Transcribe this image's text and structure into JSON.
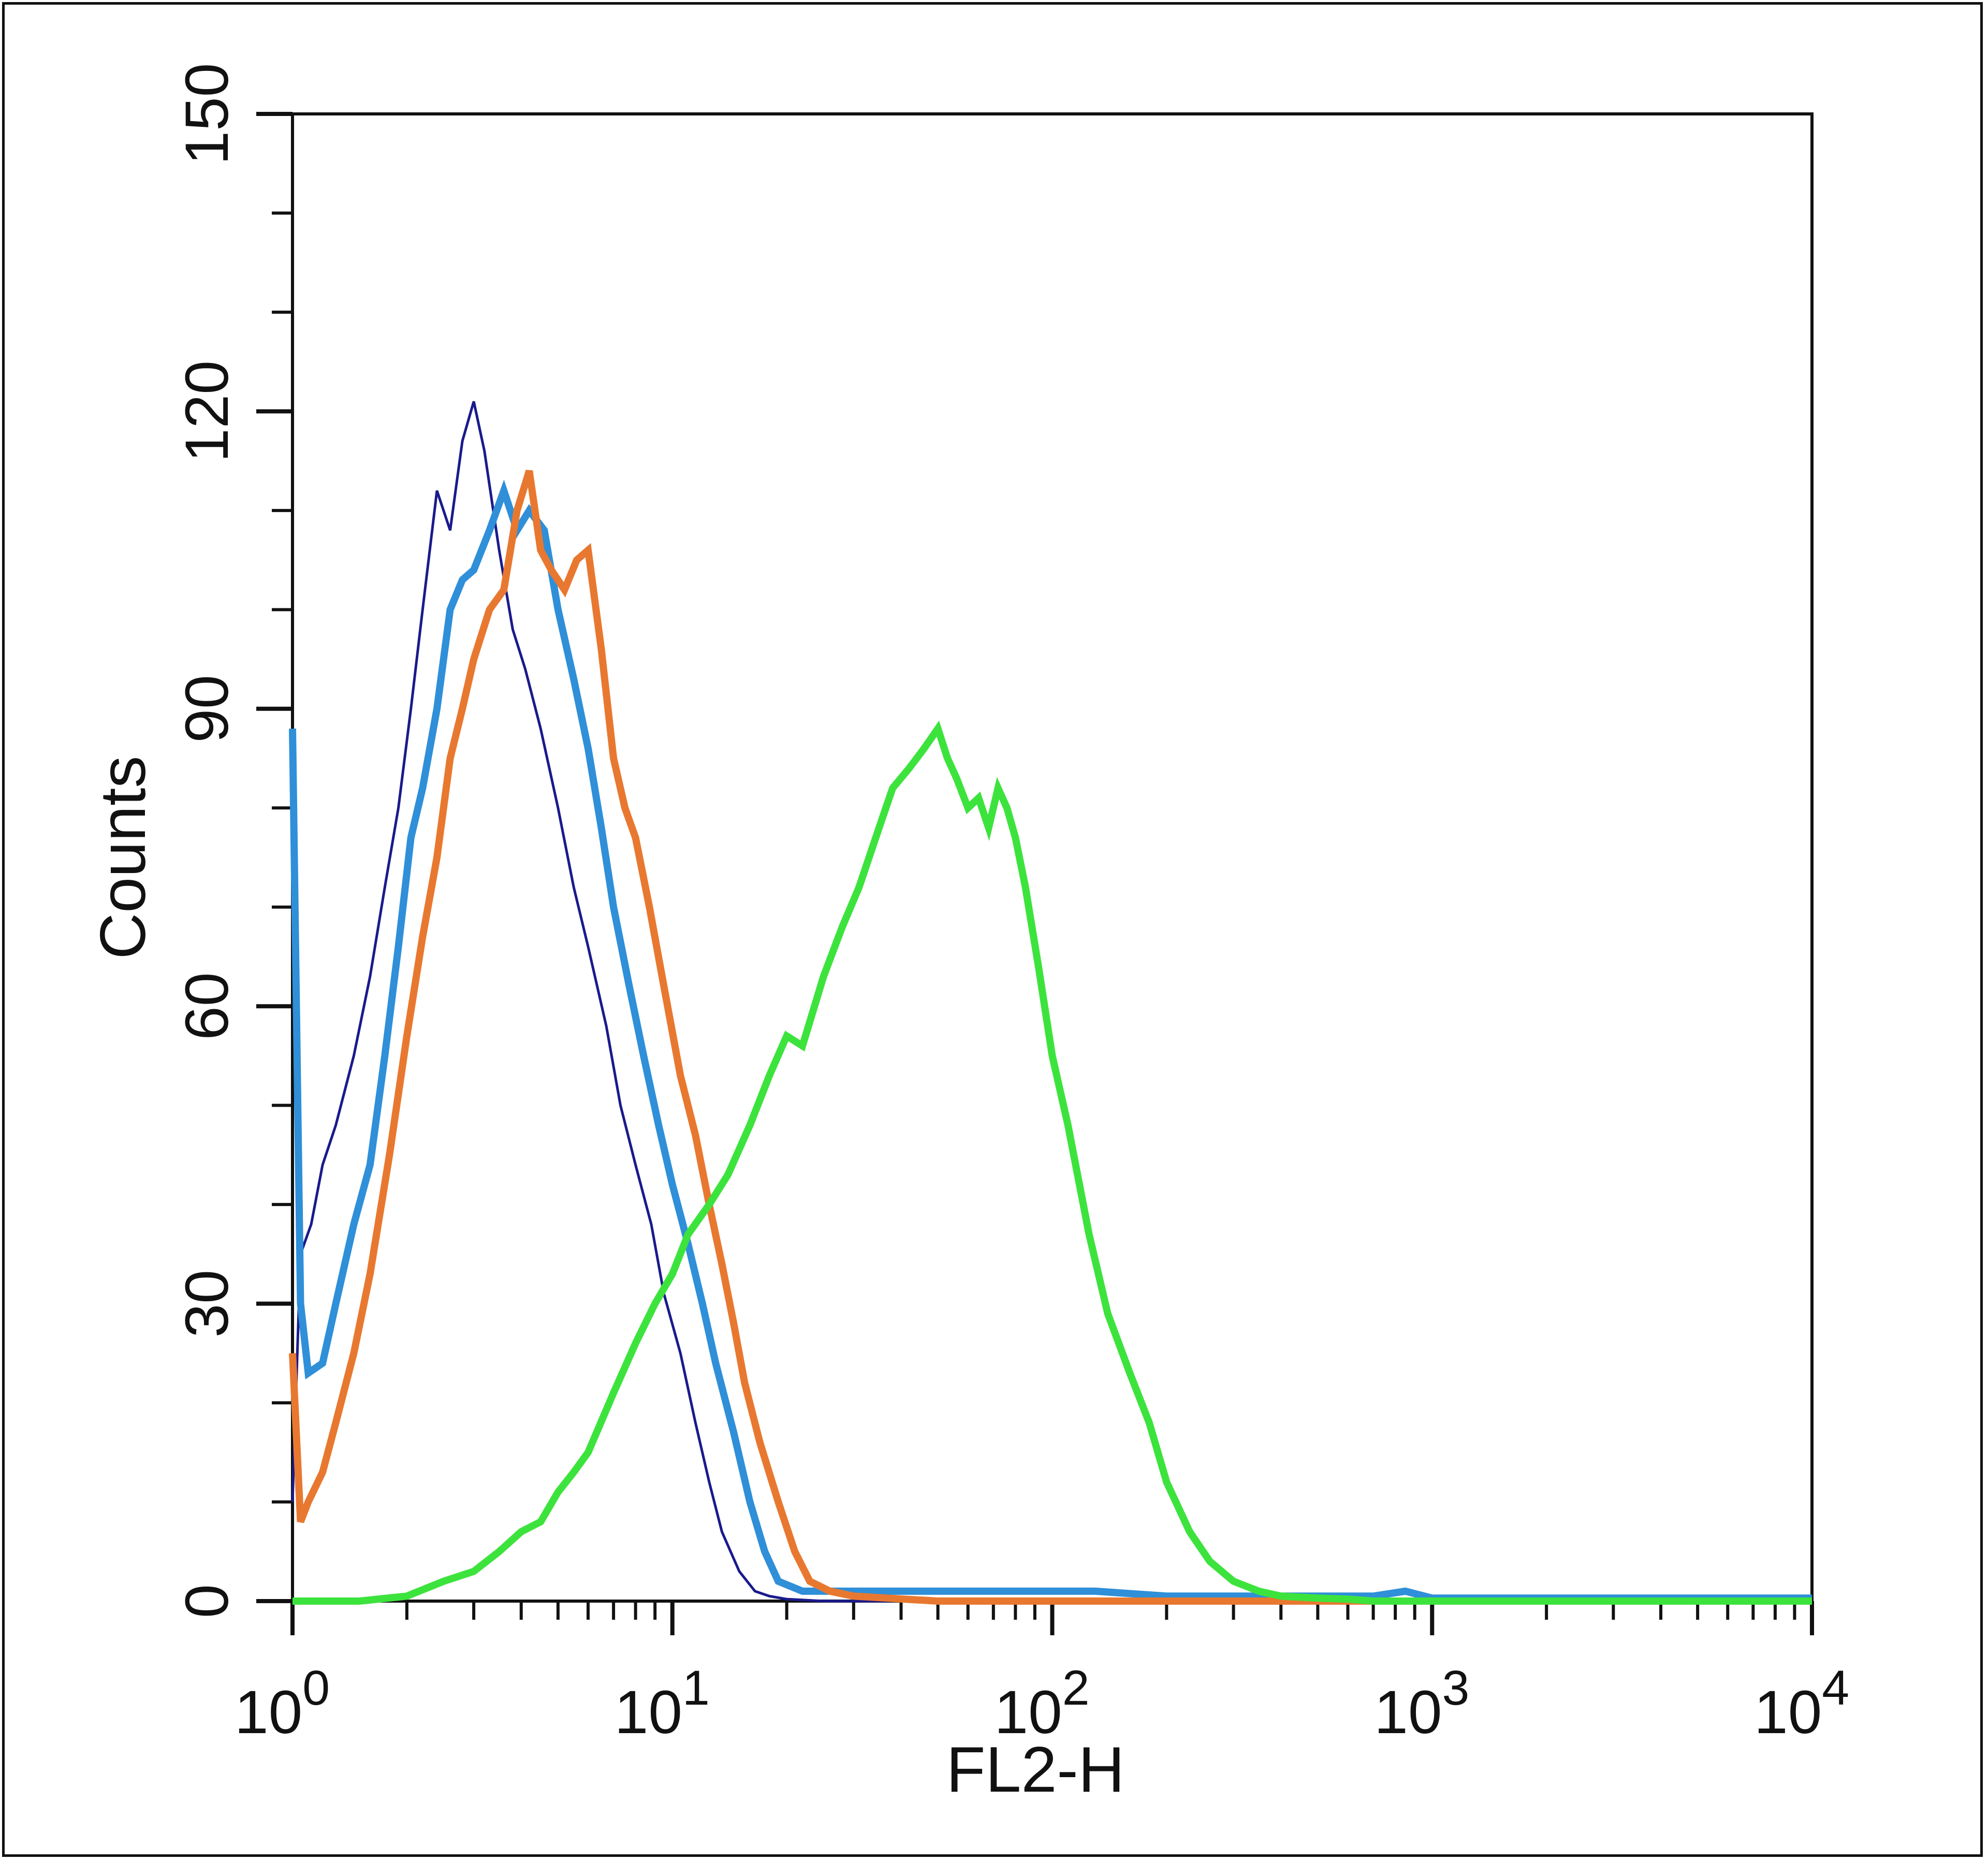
{
  "chart_data": {
    "type": "line",
    "title": "",
    "xlabel": "FL2-H",
    "ylabel": "Counts",
    "x_scale": "log",
    "xlim": [
      1,
      10000
    ],
    "ylim": [
      0,
      150
    ],
    "grid": false,
    "x_ticks": [
      {
        "value": 1,
        "base": "10",
        "exp": "0"
      },
      {
        "value": 10,
        "base": "10",
        "exp": "1"
      },
      {
        "value": 100,
        "base": "10",
        "exp": "2"
      },
      {
        "value": 1000,
        "base": "10",
        "exp": "3"
      },
      {
        "value": 10000,
        "base": "10",
        "exp": "4"
      }
    ],
    "y_ticks": [
      0,
      30,
      60,
      90,
      120,
      150
    ],
    "series": [
      {
        "color": "#1a1a8c",
        "width": 5,
        "x": [
          1.0,
          1.05,
          1.12,
          1.2,
          1.3,
          1.45,
          1.6,
          1.75,
          1.9,
          2.05,
          2.2,
          2.4,
          2.6,
          2.8,
          3.0,
          3.2,
          3.5,
          3.8,
          4.1,
          4.5,
          5.0,
          5.5,
          6.0,
          6.7,
          7.3,
          8.0,
          8.8,
          9.5,
          10.5,
          11.5,
          12.5,
          13.5,
          15.0,
          16.5,
          18.0,
          20.0,
          25.0,
          40.0,
          100.0,
          10000.0
        ],
        "y": [
          10,
          35,
          38,
          44,
          48,
          55,
          63,
          72,
          80,
          90,
          100,
          112,
          108,
          117,
          121,
          116,
          106,
          98,
          94,
          88,
          80,
          72,
          66,
          58,
          50,
          44,
          38,
          31,
          25,
          18,
          12,
          7,
          3,
          1,
          0.5,
          0.2,
          0,
          0,
          0,
          0
        ]
      },
      {
        "color": "#2f8fd8",
        "width": 14,
        "x": [
          1.0,
          1.05,
          1.1,
          1.2,
          1.3,
          1.45,
          1.6,
          1.75,
          1.9,
          2.05,
          2.2,
          2.4,
          2.6,
          2.8,
          3.0,
          3.3,
          3.6,
          3.9,
          4.2,
          4.6,
          5.0,
          5.5,
          6.0,
          6.5,
          7.0,
          7.7,
          8.4,
          9.2,
          10.0,
          11.0,
          12.0,
          13.0,
          14.5,
          16.0,
          17.5,
          19.0,
          22.0,
          30.0,
          50.0,
          80.0,
          130.0,
          200.0,
          400.0,
          700.0,
          850.0,
          1000.0,
          3000.0,
          10000.0
        ],
        "y": [
          88,
          30,
          23,
          24,
          30,
          38,
          44,
          55,
          66,
          77,
          82,
          90,
          100,
          103,
          104,
          108,
          112,
          108,
          110,
          108,
          100,
          93,
          86,
          78,
          70,
          62,
          55,
          48,
          42,
          36,
          30,
          24,
          17,
          10,
          5,
          2,
          1,
          1,
          1,
          1,
          1,
          0.5,
          0.5,
          0.5,
          1,
          0.3,
          0.3,
          0.3
        ]
      },
      {
        "color": "#e87830",
        "width": 14,
        "x": [
          1.0,
          1.05,
          1.1,
          1.2,
          1.3,
          1.45,
          1.6,
          1.8,
          2.0,
          2.2,
          2.4,
          2.6,
          2.8,
          3.0,
          3.3,
          3.6,
          3.9,
          4.2,
          4.5,
          4.8,
          5.2,
          5.6,
          6.0,
          6.5,
          7.0,
          7.5,
          8.0,
          8.7,
          9.5,
          10.5,
          11.5,
          12.5,
          13.5,
          14.5,
          15.5,
          17.0,
          19.0,
          21.0,
          23.0,
          26.0,
          30.0,
          50.0,
          10000.0
        ],
        "y": [
          25,
          8,
          10,
          13,
          18,
          25,
          33,
          45,
          57,
          67,
          75,
          85,
          90,
          95,
          100,
          102,
          110,
          114,
          106,
          104,
          102,
          105,
          106,
          96,
          85,
          80,
          77,
          70,
          62,
          53,
          47,
          40,
          34,
          28,
          22,
          16,
          10,
          5,
          2,
          1,
          0.5,
          0,
          0
        ]
      },
      {
        "color": "#3de33d",
        "width": 14,
        "x": [
          1.0,
          1.5,
          2.0,
          2.5,
          3.0,
          3.5,
          4.0,
          4.5,
          5.0,
          5.5,
          6.0,
          7.0,
          8.0,
          9.0,
          10.0,
          11.0,
          12.5,
          14.0,
          16.0,
          18.0,
          20.0,
          22.0,
          25.0,
          28.0,
          31.0,
          35.0,
          38.0,
          42.0,
          46.0,
          50.0,
          53.0,
          56.0,
          60.0,
          64.0,
          68.0,
          72.0,
          76.0,
          80.0,
          85.0,
          92.0,
          100.0,
          110.0,
          125.0,
          140.0,
          160.0,
          180.0,
          200.0,
          230.0,
          260.0,
          300.0,
          350.0,
          400.0,
          500.0,
          600.0,
          700.0,
          1000.0,
          10000.0
        ],
        "y": [
          0,
          0,
          0.5,
          2,
          3,
          5,
          7,
          8,
          11,
          13,
          15,
          21,
          26,
          30,
          33,
          37,
          40,
          43,
          48,
          53,
          57,
          56,
          63,
          68,
          72,
          78,
          82,
          84,
          86,
          88,
          85,
          83,
          80,
          81,
          78,
          82,
          80,
          77,
          72,
          64,
          55,
          48,
          37,
          29,
          23,
          18,
          12,
          7,
          4,
          2,
          1,
          0.5,
          0.3,
          0.2,
          0,
          0,
          0
        ]
      }
    ]
  }
}
